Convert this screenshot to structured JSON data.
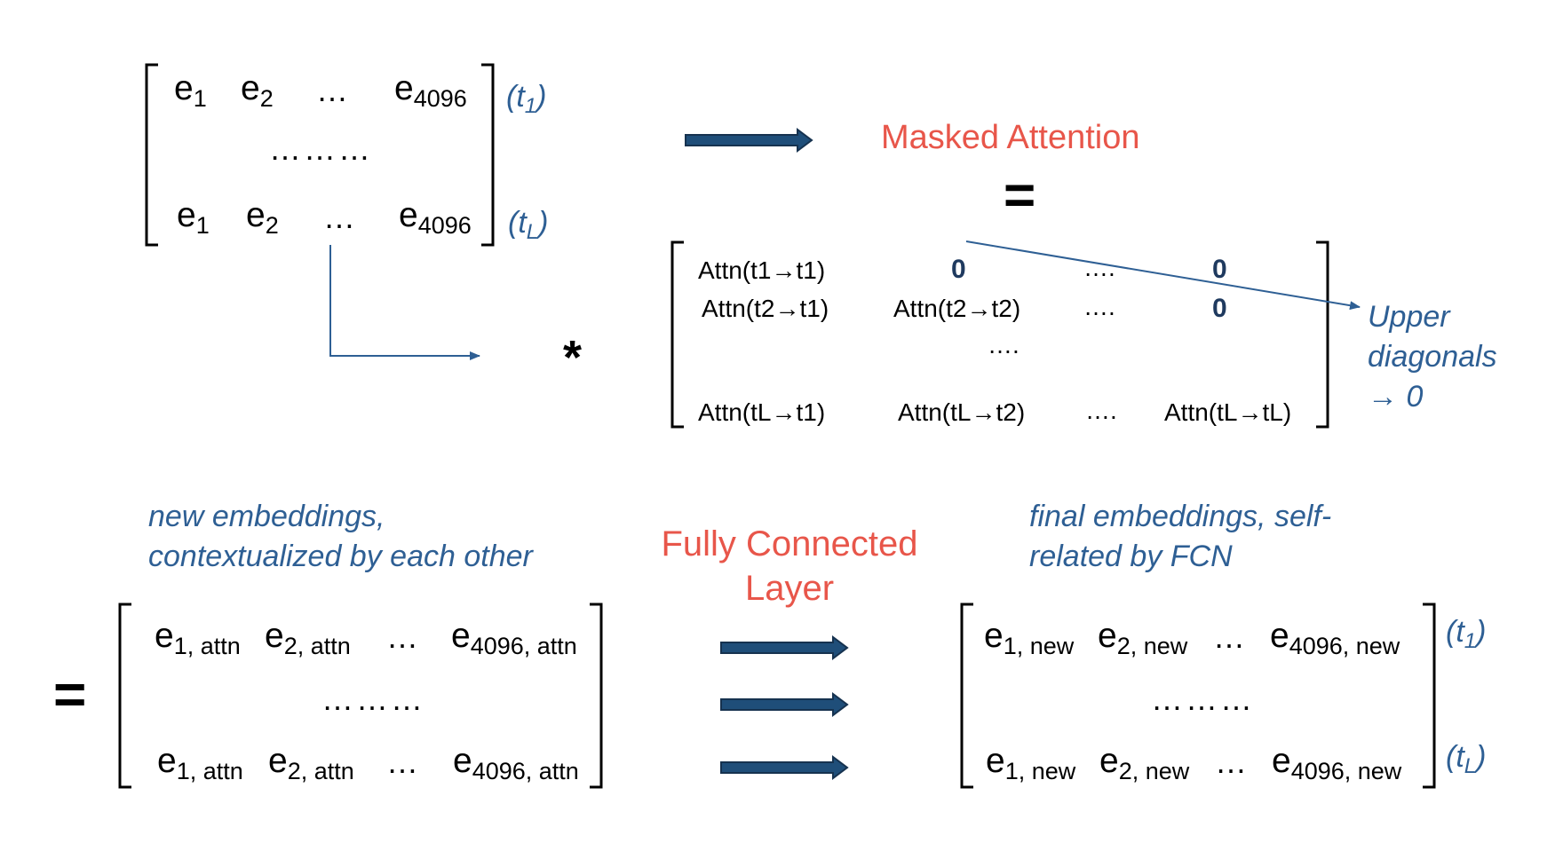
{
  "input_matrix": {
    "row1": [
      "e",
      "1",
      "e",
      "2",
      "…",
      "e",
      "4096"
    ],
    "middle": "………",
    "rowL": [
      "e",
      "1",
      "e",
      "2",
      "…",
      "e",
      "4096"
    ],
    "row_labels": {
      "first": "t",
      "first_sub": "1",
      "last": "t",
      "last_sub": "L"
    }
  },
  "masked_attention": {
    "title": "Masked Attention",
    "equals": "=",
    "multiply": "*",
    "rows": [
      [
        "Attn(t1→t1)",
        "0",
        "….",
        "0"
      ],
      [
        "Attn(t2→t1)",
        "Attn(t2→t2)",
        "….",
        "0"
      ],
      [
        "",
        "….",
        "",
        ""
      ],
      [
        "Attn(tL→t1)",
        "Attn(tL→t2)",
        "….",
        "Attn(tL→tL)"
      ]
    ],
    "annotation": [
      "Upper",
      "diagonals",
      "→ 0"
    ]
  },
  "attn_output": {
    "equals": "=",
    "description": [
      "new embeddings,",
      "contextualized by each other"
    ],
    "row1": [
      "e",
      "1, attn",
      "e",
      "2, attn",
      "…",
      "e",
      "4096, attn"
    ],
    "middle": "………",
    "rowL": [
      "e",
      "1, attn",
      "e",
      "2, attn",
      "…",
      "e",
      "4096, attn"
    ]
  },
  "fcn": {
    "title": [
      "Fully Connected",
      "Layer"
    ]
  },
  "final_output": {
    "description": [
      "final embeddings, self-",
      "related by FCN"
    ],
    "row1": [
      "e",
      "1, new",
      "e",
      "2, new",
      "…",
      "e",
      "4096, new"
    ],
    "middle": "………",
    "rowL": [
      "e",
      "1, new",
      "e",
      "2, new",
      "…",
      "e",
      "4096, new"
    ],
    "row_labels": {
      "first": "t",
      "first_sub": "1",
      "last": "t",
      "last_sub": "L"
    }
  },
  "colors": {
    "label_blue": "#2e5f94",
    "accent_red": "#e8564a",
    "arrow_fill": "#1f4e79",
    "arrow_stroke": "#16324f"
  }
}
